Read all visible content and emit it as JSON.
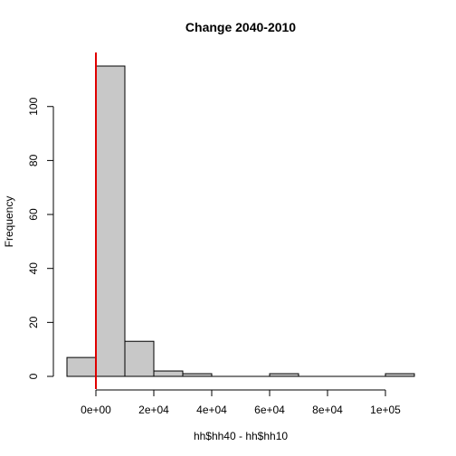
{
  "chart_data": {
    "type": "bar",
    "title": "Change 2040-2010",
    "xlabel": "hh$hh40 - hh$hh10",
    "ylabel": "Frequency",
    "bins": [
      {
        "start": -10000,
        "end": 0,
        "count": 7
      },
      {
        "start": 0,
        "end": 10000,
        "count": 115
      },
      {
        "start": 10000,
        "end": 20000,
        "count": 13
      },
      {
        "start": 20000,
        "end": 30000,
        "count": 2
      },
      {
        "start": 30000,
        "end": 40000,
        "count": 1
      },
      {
        "start": 40000,
        "end": 50000,
        "count": 0
      },
      {
        "start": 50000,
        "end": 60000,
        "count": 0
      },
      {
        "start": 60000,
        "end": 70000,
        "count": 1
      },
      {
        "start": 70000,
        "end": 80000,
        "count": 0
      },
      {
        "start": 80000,
        "end": 90000,
        "count": 0
      },
      {
        "start": 90000,
        "end": 100000,
        "count": 0
      },
      {
        "start": 100000,
        "end": 110000,
        "count": 1
      }
    ],
    "x_ticks": [
      {
        "value": 0,
        "label": "0e+00"
      },
      {
        "value": 20000,
        "label": "2e+04"
      },
      {
        "value": 40000,
        "label": "4e+04"
      },
      {
        "value": 60000,
        "label": "6e+04"
      },
      {
        "value": 80000,
        "label": "8e+04"
      },
      {
        "value": 100000,
        "label": "1e+05"
      }
    ],
    "y_ticks": [
      {
        "value": 0,
        "label": "0"
      },
      {
        "value": 20,
        "label": "20"
      },
      {
        "value": 40,
        "label": "40"
      },
      {
        "value": 60,
        "label": "60"
      },
      {
        "value": 80,
        "label": "80"
      },
      {
        "value": 100,
        "label": "100"
      }
    ],
    "xlim": [
      -10000,
      110000
    ],
    "ylim": [
      0,
      115
    ],
    "vline": {
      "x": 0,
      "color": "#e00000"
    },
    "bar_color": "#c8c8c8",
    "grid": false
  }
}
